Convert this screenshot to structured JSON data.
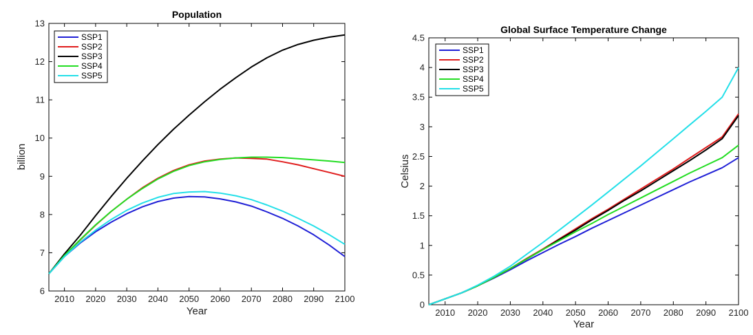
{
  "chart_data": [
    {
      "type": "line",
      "title": "Population",
      "xlabel": "Year",
      "ylabel": "billion",
      "xlim": [
        2005,
        2100
      ],
      "ylim": [
        6,
        13
      ],
      "xticks": [
        2010,
        2020,
        2030,
        2040,
        2050,
        2060,
        2070,
        2080,
        2090,
        2100
      ],
      "yticks": [
        6,
        7,
        8,
        9,
        10,
        11,
        12,
        13
      ],
      "grid": false,
      "legend_position": "top-left",
      "x": [
        2005,
        2010,
        2015,
        2020,
        2025,
        2030,
        2035,
        2040,
        2045,
        2050,
        2055,
        2060,
        2065,
        2070,
        2075,
        2080,
        2085,
        2090,
        2095,
        2100
      ],
      "series": [
        {
          "name": "SSP1",
          "color": "#1f1fd6",
          "values": [
            6.45,
            6.9,
            7.25,
            7.55,
            7.8,
            8.02,
            8.2,
            8.34,
            8.43,
            8.47,
            8.46,
            8.41,
            8.33,
            8.22,
            8.07,
            7.9,
            7.7,
            7.47,
            7.2,
            6.9
          ]
        },
        {
          "name": "SSP2",
          "color": "#e01c1c",
          "values": [
            6.45,
            6.93,
            7.33,
            7.72,
            8.08,
            8.4,
            8.7,
            8.95,
            9.15,
            9.3,
            9.4,
            9.45,
            9.48,
            9.47,
            9.45,
            9.38,
            9.3,
            9.2,
            9.1,
            9.0
          ]
        },
        {
          "name": "SSP3",
          "color": "#000000",
          "values": [
            6.45,
            6.97,
            7.45,
            7.97,
            8.47,
            8.95,
            9.4,
            9.83,
            10.23,
            10.6,
            10.95,
            11.28,
            11.58,
            11.86,
            12.1,
            12.3,
            12.45,
            12.56,
            12.64,
            12.7
          ]
        },
        {
          "name": "SSP4",
          "color": "#22dd22",
          "values": [
            6.45,
            6.93,
            7.34,
            7.73,
            8.08,
            8.4,
            8.68,
            8.93,
            9.13,
            9.28,
            9.38,
            9.44,
            9.48,
            9.5,
            9.5,
            9.49,
            9.46,
            9.43,
            9.4,
            9.36
          ]
        },
        {
          "name": "SSP5",
          "color": "#22dfe8",
          "values": [
            6.45,
            6.9,
            7.27,
            7.59,
            7.87,
            8.11,
            8.3,
            8.45,
            8.55,
            8.59,
            8.6,
            8.56,
            8.49,
            8.39,
            8.25,
            8.09,
            7.9,
            7.7,
            7.47,
            7.22
          ]
        }
      ]
    },
    {
      "type": "line",
      "title": "Global Surface Temperature Change",
      "xlabel": "Year",
      "ylabel": "Celsius",
      "xlim": [
        2005,
        2100
      ],
      "ylim": [
        0,
        4.5
      ],
      "xticks": [
        2010,
        2020,
        2030,
        2040,
        2050,
        2060,
        2070,
        2080,
        2090,
        2100
      ],
      "yticks": [
        0,
        0.5,
        1,
        1.5,
        2,
        2.5,
        3,
        3.5,
        4,
        4.5
      ],
      "ytick_labels": [
        "0",
        "0.5",
        "1",
        "1.5",
        "2",
        "2.5",
        "3",
        "3.5",
        "4",
        "4.5"
      ],
      "grid": false,
      "legend_position": "top-left",
      "x": [
        2005,
        2010,
        2015,
        2020,
        2025,
        2030,
        2035,
        2040,
        2045,
        2050,
        2055,
        2060,
        2065,
        2070,
        2075,
        2080,
        2085,
        2090,
        2095,
        2100
      ],
      "series": [
        {
          "name": "SSP1",
          "color": "#1f1fd6",
          "values": [
            0.0,
            0.1,
            0.2,
            0.32,
            0.45,
            0.59,
            0.74,
            0.88,
            1.02,
            1.15,
            1.29,
            1.42,
            1.55,
            1.68,
            1.81,
            1.94,
            2.07,
            2.19,
            2.31,
            2.48
          ]
        },
        {
          "name": "SSP2",
          "color": "#e01c1c",
          "values": [
            0.0,
            0.1,
            0.2,
            0.32,
            0.46,
            0.61,
            0.78,
            0.94,
            1.11,
            1.28,
            1.45,
            1.61,
            1.78,
            1.95,
            2.12,
            2.29,
            2.47,
            2.65,
            2.83,
            3.22
          ]
        },
        {
          "name": "SSP3",
          "color": "#000000",
          "values": [
            0.0,
            0.1,
            0.2,
            0.32,
            0.46,
            0.61,
            0.77,
            0.93,
            1.1,
            1.26,
            1.43,
            1.59,
            1.76,
            1.92,
            2.09,
            2.26,
            2.43,
            2.61,
            2.8,
            3.19
          ]
        },
        {
          "name": "SSP4",
          "color": "#22dd22",
          "values": [
            0.0,
            0.1,
            0.2,
            0.32,
            0.46,
            0.61,
            0.77,
            0.93,
            1.08,
            1.23,
            1.37,
            1.52,
            1.66,
            1.8,
            1.94,
            2.08,
            2.22,
            2.35,
            2.48,
            2.69
          ]
        },
        {
          "name": "SSP5",
          "color": "#22dfe8",
          "values": [
            0.0,
            0.1,
            0.2,
            0.33,
            0.48,
            0.65,
            0.85,
            1.05,
            1.26,
            1.47,
            1.68,
            1.9,
            2.12,
            2.34,
            2.57,
            2.8,
            3.03,
            3.26,
            3.5,
            4.0
          ]
        }
      ]
    }
  ]
}
